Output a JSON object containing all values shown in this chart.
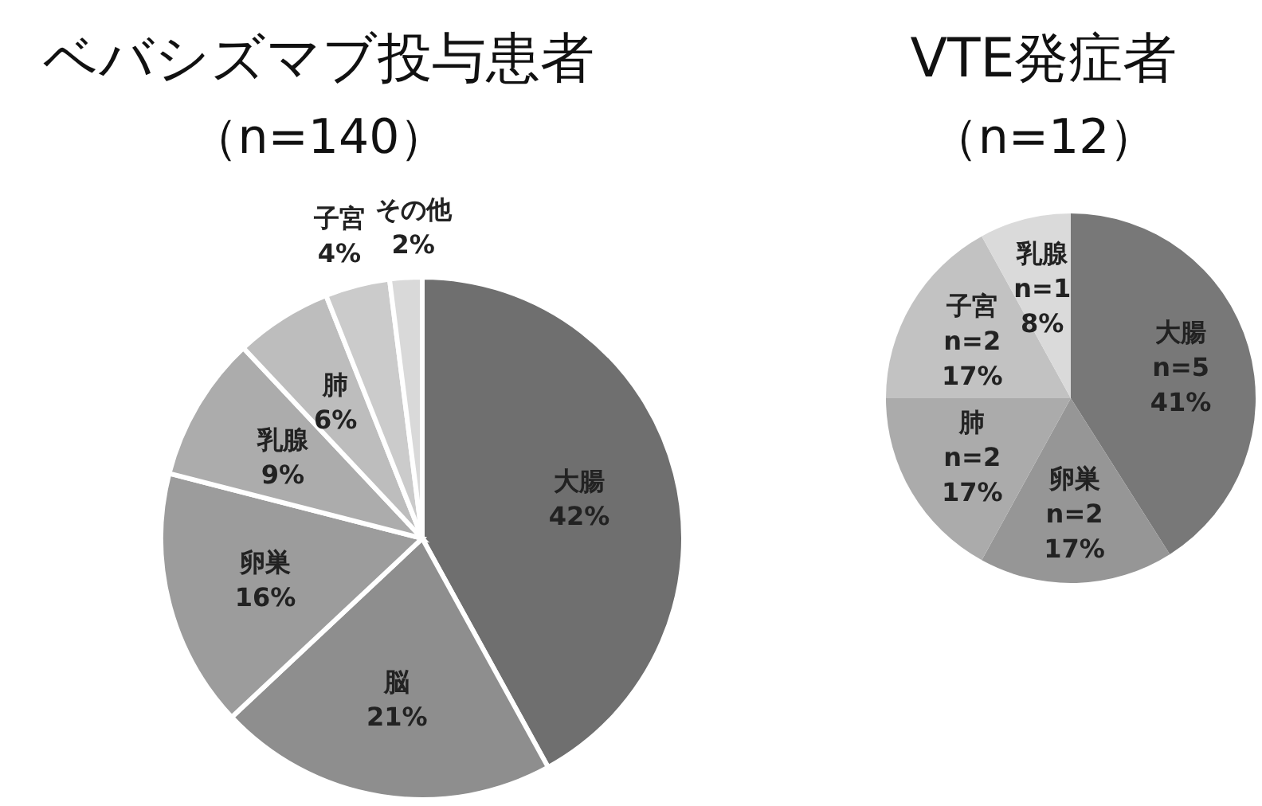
{
  "chart_data": [
    {
      "type": "pie",
      "title": "ベバシズマブ投与患者",
      "subtitle": "（n=140）",
      "categories": [
        "大腸",
        "脳",
        "卵巣",
        "乳腺",
        "肺",
        "子宮",
        "その他"
      ],
      "values": [
        42,
        21,
        16,
        9,
        6,
        4,
        2
      ],
      "value_labels": [
        "42%",
        "21%",
        "16%",
        "9%",
        "6%",
        "4%",
        "2%"
      ],
      "colors": [
        "#6f6f6f",
        "#8e8e8e",
        "#9c9c9c",
        "#acacac",
        "#bdbdbd",
        "#cbcbcb",
        "#d9d9d9"
      ]
    },
    {
      "type": "pie",
      "title": "VTE発症者",
      "subtitle": "（n=12）",
      "categories": [
        "大腸",
        "卵巣",
        "肺",
        "子宮",
        "乳腺"
      ],
      "values": [
        41,
        17,
        17,
        17,
        8
      ],
      "value_labels": [
        "n=5\n41%",
        "n=2\n17%",
        "n=2\n17%",
        "n=2\n17%",
        "n=1\n8%"
      ],
      "colors": [
        "#787878",
        "#969696",
        "#ababab",
        "#c2c2c2",
        "#dadada"
      ]
    }
  ]
}
